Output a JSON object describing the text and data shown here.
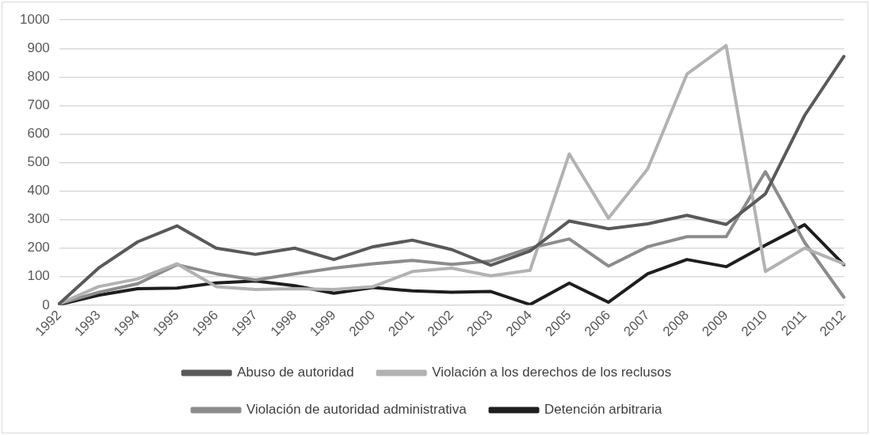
{
  "chart_data": {
    "type": "line",
    "categories": [
      "1992",
      "1993",
      "1994",
      "1995",
      "1996",
      "1997",
      "1998",
      "1999",
      "2000",
      "2001",
      "2002",
      "2003",
      "2004",
      "2005",
      "2006",
      "2007",
      "2008",
      "2009",
      "2010",
      "2011",
      "2012"
    ],
    "series": [
      {
        "name": "Abuso de autoridad",
        "color": "#595959",
        "values": [
          5,
          130,
          222,
          278,
          200,
          178,
          200,
          160,
          205,
          228,
          195,
          140,
          190,
          295,
          268,
          285,
          315,
          283,
          390,
          665,
          872
        ]
      },
      {
        "name": "Violación a los derechos de los reclusos",
        "color": "#b2b2b2",
        "values": [
          5,
          65,
          92,
          145,
          65,
          55,
          58,
          55,
          65,
          118,
          130,
          103,
          122,
          530,
          305,
          478,
          810,
          910,
          118,
          200,
          145
        ]
      },
      {
        "name": "Violación de autoridad administrativa",
        "color": "#8c8c8c",
        "values": [
          5,
          45,
          75,
          142,
          110,
          88,
          110,
          130,
          145,
          157,
          143,
          155,
          200,
          232,
          137,
          205,
          240,
          240,
          468,
          220,
          28
        ]
      },
      {
        "name": "Detención arbitraria",
        "color": "#1e1e1e",
        "values": [
          2,
          35,
          58,
          60,
          78,
          85,
          68,
          42,
          62,
          50,
          45,
          48,
          2,
          77,
          10,
          110,
          160,
          135,
          210,
          282,
          142
        ]
      }
    ],
    "ylim": [
      0,
      1000
    ],
    "yticks": [
      0,
      100,
      200,
      300,
      400,
      500,
      600,
      700,
      800,
      900,
      1000
    ],
    "grid": "y",
    "legend": "bottom",
    "marker": "none",
    "line_style": "solid"
  }
}
